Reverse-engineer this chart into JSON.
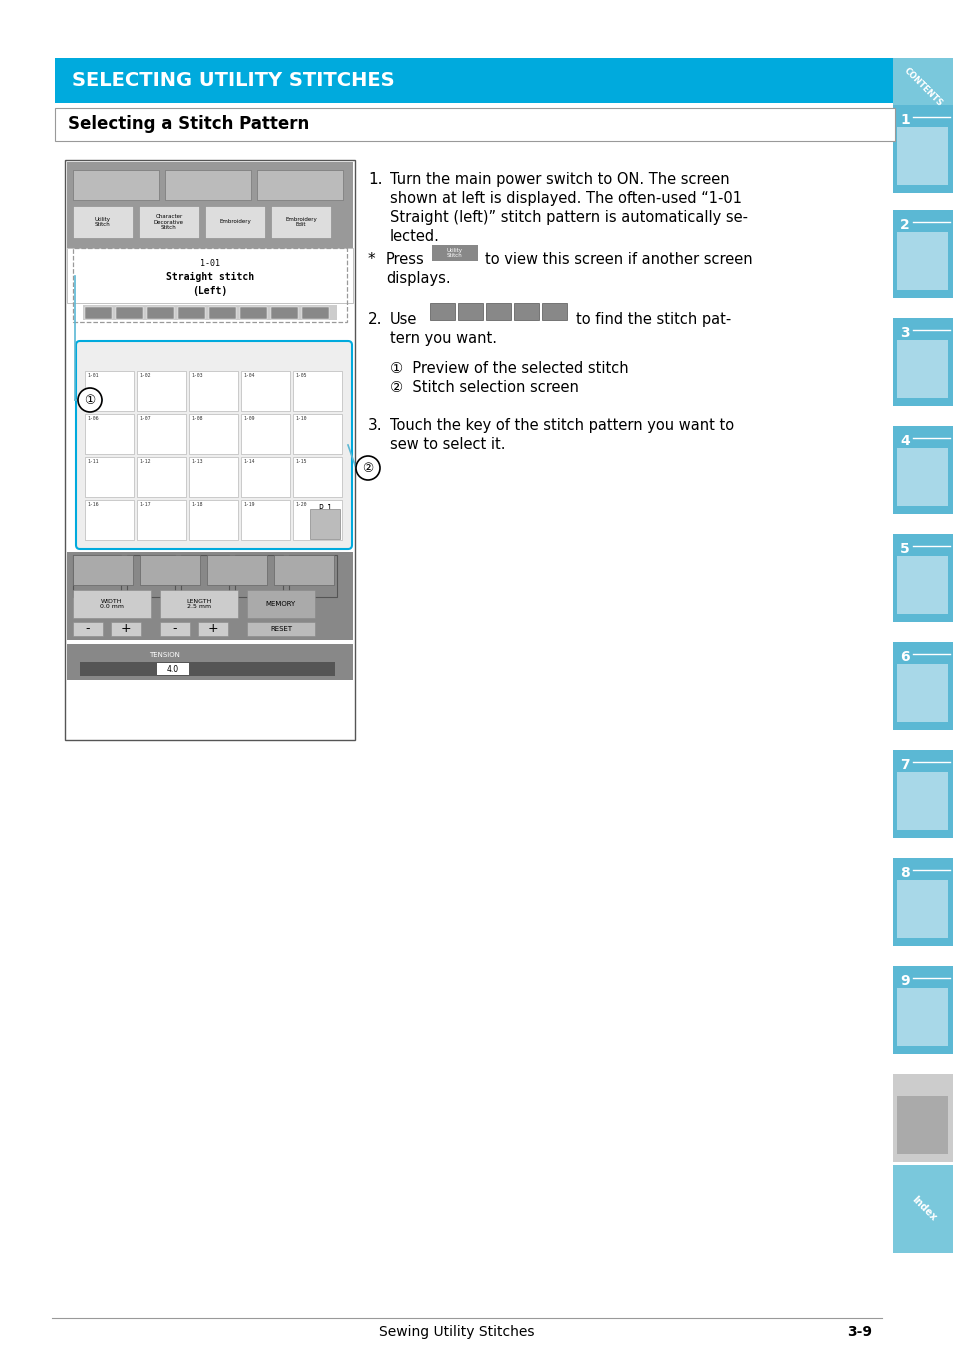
{
  "title": "SELECTING UTILITY STITCHES",
  "title_bg": "#00AADD",
  "title_color": "#FFFFFF",
  "section_title": "Selecting a Stitch Pattern",
  "page_bg": "#FFFFFF",
  "sidebar_color": "#5BB8D4",
  "step1_lines": [
    "Turn the main power switch to ON. The screen",
    "shown at left is displayed. The often-used “1-01",
    "Straight (left)” stitch pattern is automatically se-",
    "lected."
  ],
  "note_line1": "to view this screen if another screen",
  "note_line2": "displays.",
  "step2_line1": "to find the stitch pat-",
  "step2_line2": "tern you want.",
  "step2_sub1": "①  Preview of the selected stitch",
  "step2_sub2": "②  Stitch selection screen",
  "step3_lines": [
    "Touch the key of the stitch pattern you want to",
    "sew to select it."
  ],
  "footer_left": "Sewing Utility Stitches",
  "footer_right": "3-9"
}
